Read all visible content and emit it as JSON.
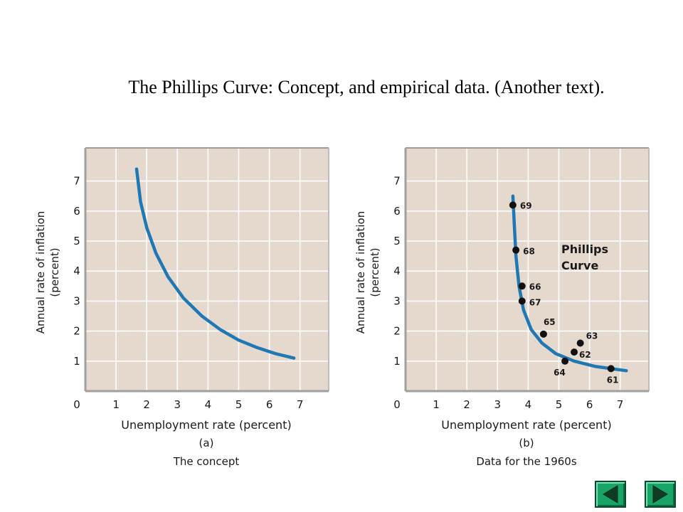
{
  "slide": {
    "title": "The Phillips Curve: Concept, and empirical data. (Another text)."
  },
  "colors": {
    "panel_bg": "#e5d8cd",
    "curve": "#1f78b4",
    "grid": "#ffffff",
    "nav_button": "#1aa568"
  },
  "chart_data": [
    {
      "type": "line",
      "xlabel": "Unemployment rate (percent)",
      "ylabel_line1": "Annual rate of inflation",
      "ylabel_line2": "(percent)",
      "panel_letter": "(a)",
      "caption": "The concept",
      "xlim": [
        0,
        8
      ],
      "ylim": [
        0,
        8
      ],
      "xticks": [
        "0",
        "1",
        "2",
        "3",
        "4",
        "5",
        "6",
        "7"
      ],
      "yticks": [
        "1",
        "2",
        "3",
        "4",
        "5",
        "6",
        "7"
      ],
      "grid": true,
      "series": [
        {
          "x": [
            1.67,
            1.8,
            2.0,
            2.3,
            2.7,
            3.2,
            3.8,
            4.4,
            5.0,
            5.6,
            6.2,
            6.8
          ],
          "values": [
            7.4,
            6.3,
            5.45,
            4.6,
            3.8,
            3.1,
            2.5,
            2.05,
            1.7,
            1.45,
            1.25,
            1.1
          ]
        }
      ]
    },
    {
      "type": "scatter",
      "xlabel": "Unemployment rate (percent)",
      "ylabel_line1": "Annual rate of inflation",
      "ylabel_line2": "(percent)",
      "panel_letter": "(b)",
      "caption": "Data for the 1960s",
      "annotation_line1": "Phillips",
      "annotation_line2": "Curve",
      "xlim": [
        0,
        8
      ],
      "ylim": [
        0,
        8
      ],
      "xticks": [
        "0",
        "1",
        "2",
        "3",
        "4",
        "5",
        "6",
        "7"
      ],
      "yticks": [
        "1",
        "2",
        "3",
        "4",
        "5",
        "6",
        "7"
      ],
      "grid": true,
      "points": [
        {
          "label": "61",
          "x": 6.7,
          "y": 0.75
        },
        {
          "label": "62",
          "x": 5.5,
          "y": 1.3
        },
        {
          "label": "63",
          "x": 5.7,
          "y": 1.6
        },
        {
          "label": "64",
          "x": 5.2,
          "y": 1.0
        },
        {
          "label": "65",
          "x": 4.5,
          "y": 1.9
        },
        {
          "label": "66",
          "x": 3.8,
          "y": 3.5
        },
        {
          "label": "67",
          "x": 3.8,
          "y": 3.0
        },
        {
          "label": "68",
          "x": 3.6,
          "y": 4.7
        },
        {
          "label": "69",
          "x": 3.5,
          "y": 6.2
        }
      ],
      "curve": {
        "x": [
          3.5,
          3.55,
          3.6,
          3.7,
          3.85,
          4.1,
          4.45,
          4.9,
          5.5,
          6.2,
          7.2
        ],
        "values": [
          6.5,
          5.5,
          4.5,
          3.5,
          2.7,
          2.05,
          1.6,
          1.25,
          1.0,
          0.82,
          0.68
        ]
      }
    }
  ]
}
